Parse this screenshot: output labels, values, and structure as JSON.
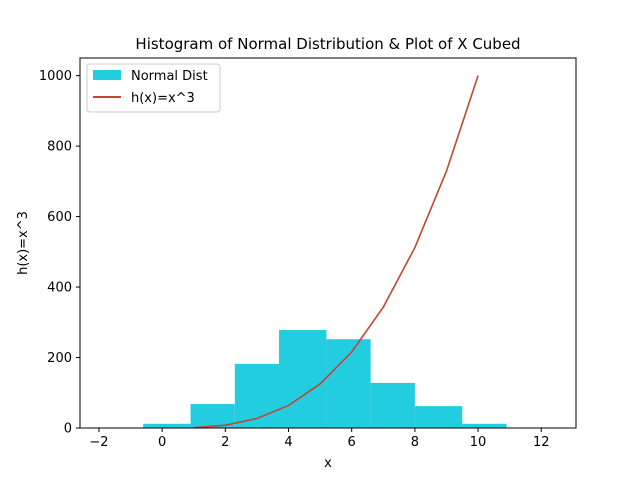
{
  "chart_data": {
    "type": "bar",
    "title": "Histogram of Normal Distribution & Plot of X Cubed",
    "xlabel": "x",
    "ylabel": "h(x)=x^3",
    "xlim": [
      -2.6,
      13.1
    ],
    "ylim": [
      0,
      1050
    ],
    "xticks": [
      -2,
      0,
      2,
      4,
      6,
      8,
      10,
      12
    ],
    "yticks": [
      0,
      200,
      400,
      600,
      800,
      1000
    ],
    "grid": false,
    "legend_position": "top-left",
    "histogram": {
      "name": "Normal Dist",
      "color": "#22cde0",
      "bins": [
        {
          "x0": -0.6,
          "x1": 0.9,
          "count": 12
        },
        {
          "x0": 0.9,
          "x1": 2.3,
          "count": 68
        },
        {
          "x0": 2.3,
          "x1": 3.7,
          "count": 182
        },
        {
          "x0": 3.7,
          "x1": 5.2,
          "count": 278
        },
        {
          "x0": 5.2,
          "x1": 6.6,
          "count": 252
        },
        {
          "x0": 6.6,
          "x1": 8.0,
          "count": 128
        },
        {
          "x0": 8.0,
          "x1": 9.5,
          "count": 62
        },
        {
          "x0": 9.5,
          "x1": 10.9,
          "count": 12
        }
      ]
    },
    "line": {
      "name": "h(x)=x^3",
      "color": "#c44536",
      "x": [
        1,
        2,
        3,
        4,
        5,
        6,
        7,
        8,
        9,
        10
      ],
      "y": [
        1,
        8,
        27,
        64,
        125,
        216,
        343,
        512,
        729,
        1000
      ]
    }
  }
}
